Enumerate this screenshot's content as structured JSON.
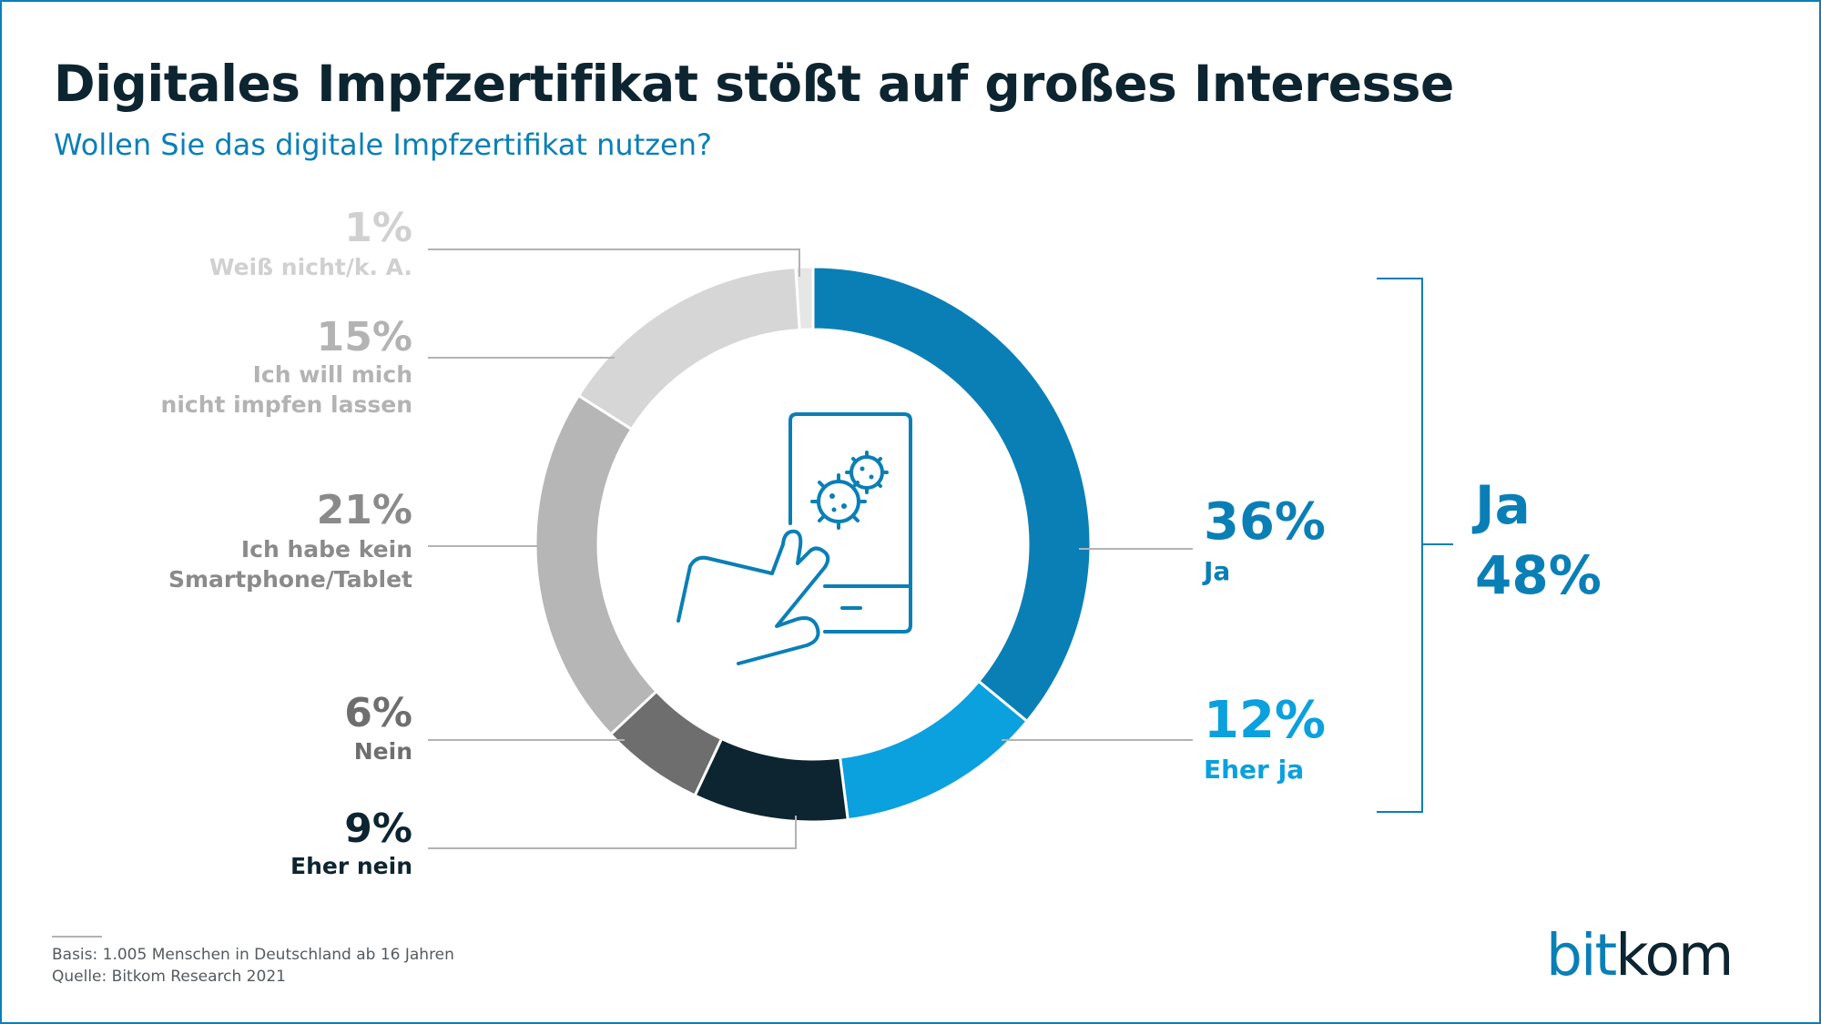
{
  "header": {
    "title": "Digitales Impfzertifikat stößt auf großes Interesse",
    "subtitle": "Wollen Sie das digitale Impfzertifikat nutzen?"
  },
  "colors": {
    "ja": "#0a7fb6",
    "eher_ja": "#0ba0de",
    "eher_nein": "#0d2530",
    "nein": "#6e6e6e",
    "kein_smartphone": "#b6b6b6",
    "nicht_impfen": "#d6d6d6",
    "weiss_nicht": "#e6e6e6",
    "leader": "#b3b3b3",
    "bracket": "#0a7fb6"
  },
  "chart_data": {
    "type": "pie",
    "variant": "donut",
    "slices": [
      {
        "id": "ja",
        "label": "Ja",
        "value": 36,
        "display": "36%",
        "color": "#0a7fb6"
      },
      {
        "id": "eher_ja",
        "label": "Eher ja",
        "value": 12,
        "display": "12%",
        "color": "#0ba0de"
      },
      {
        "id": "eher_nein",
        "label": "Eher nein",
        "value": 9,
        "display": "9%",
        "color": "#0d2530"
      },
      {
        "id": "nein",
        "label": "Nein",
        "value": 6,
        "display": "6%",
        "color": "#6e6e6e"
      },
      {
        "id": "kein_smartphone",
        "label": [
          "Ich habe kein",
          "Smartphone/Tablet"
        ],
        "value": 21,
        "display": "21%",
        "color": "#b6b6b6"
      },
      {
        "id": "nicht_impfen",
        "label": [
          "Ich will mich",
          "nicht impfen lassen"
        ],
        "value": 15,
        "display": "15%",
        "color": "#d6d6d6"
      },
      {
        "id": "weiss_nicht",
        "label": "Weiß nicht/k. A.",
        "value": 1,
        "display": "1%",
        "color": "#e6e6e6"
      }
    ],
    "summary": {
      "label": "Ja",
      "value": 48,
      "display": "48%"
    },
    "center_icon": "hand-touching-phone-virus-icon"
  },
  "footer": {
    "basis": "Basis: 1.005 Menschen in Deutschland ab 16 Jahren",
    "quelle": "Quelle: Bitkom Research 2021",
    "logo": "bitkom",
    "logo_parts": [
      "bit",
      "kom"
    ]
  }
}
